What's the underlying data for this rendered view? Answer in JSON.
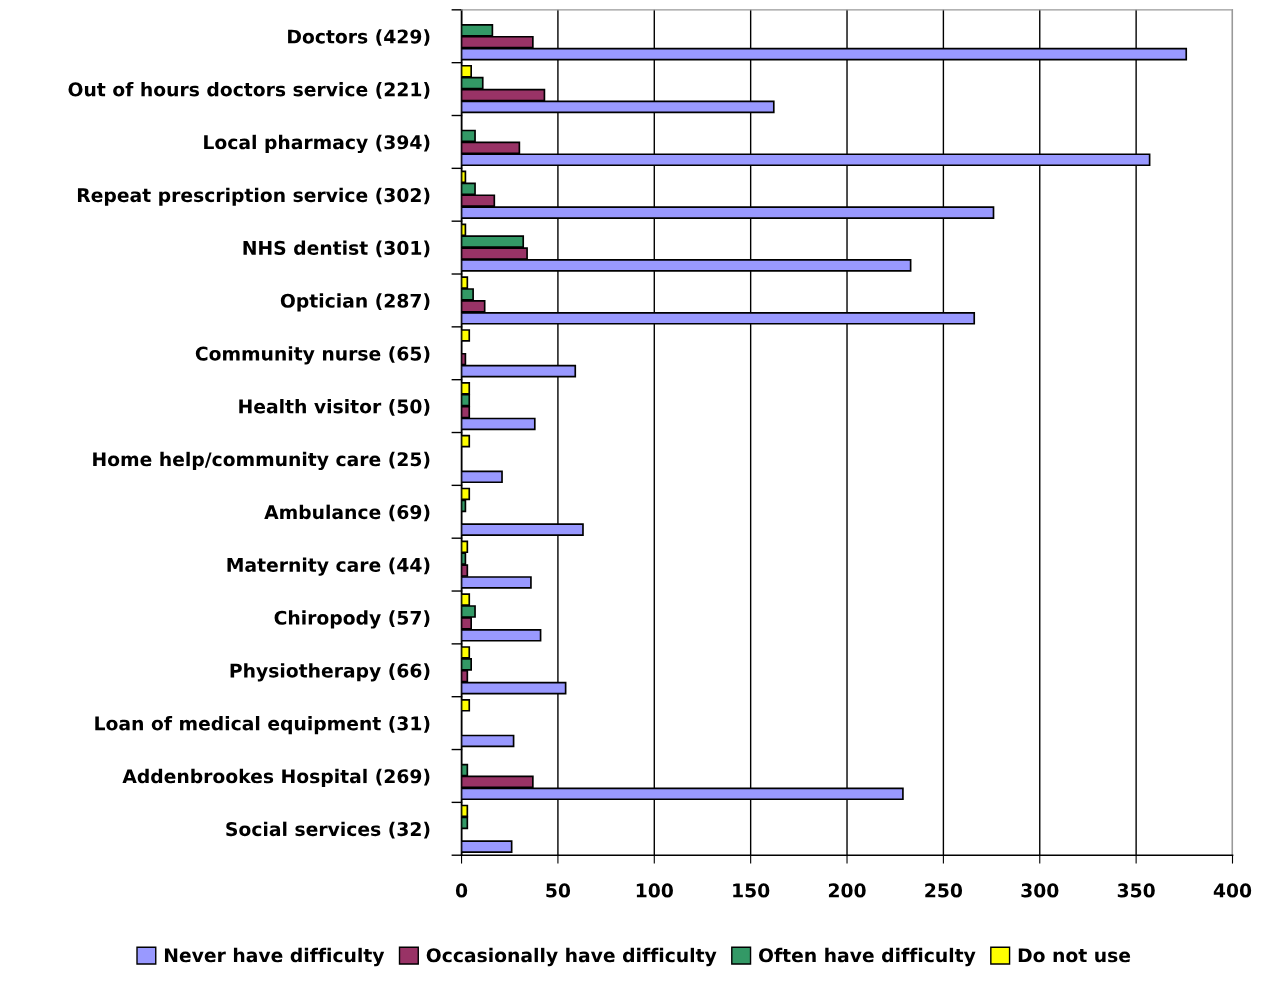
{
  "chart_data": {
    "type": "bar",
    "orientation": "horizontal",
    "categories": [
      "Doctors (429)",
      "Out of hours doctors service (221)",
      "Local pharmacy (394)",
      "Repeat prescription service (302)",
      "NHS dentist (301)",
      "Optician (287)",
      "Community nurse (65)",
      "Health visitor (50)",
      "Home help/community care (25)",
      "Ambulance (69)",
      "Maternity care (44)",
      "Chiropody (57)",
      "Physiotherapy (66)",
      "Loan of medical equipment (31)",
      "Addenbrookes Hospital (269)",
      "Social services (32)"
    ],
    "series": [
      {
        "name": "Never have difficulty",
        "color": "#9999ff",
        "values": [
          376,
          162,
          357,
          276,
          233,
          266,
          59,
          38,
          21,
          63,
          36,
          41,
          54,
          27,
          229,
          26
        ]
      },
      {
        "name": "Occasionally have difficulty",
        "color": "#993366",
        "values": [
          37,
          43,
          30,
          17,
          34,
          12,
          2,
          4,
          null,
          null,
          3,
          5,
          3,
          null,
          37,
          null
        ]
      },
      {
        "name": "Often have difficulty",
        "color": "#339966",
        "values": [
          16,
          11,
          7,
          7,
          32,
          6,
          null,
          4,
          null,
          2,
          2,
          7,
          5,
          null,
          3,
          3
        ]
      },
      {
        "name": "Do not use",
        "color": "#ffff00",
        "values": [
          null,
          5,
          null,
          2,
          2,
          3,
          4,
          4,
          4,
          4,
          3,
          4,
          4,
          4,
          null,
          3
        ]
      }
    ],
    "xlim": [
      0,
      400
    ],
    "xticks": [
      0,
      50,
      100,
      150,
      200,
      250,
      300,
      350,
      400
    ],
    "grid": "x",
    "legend": "bottom"
  }
}
